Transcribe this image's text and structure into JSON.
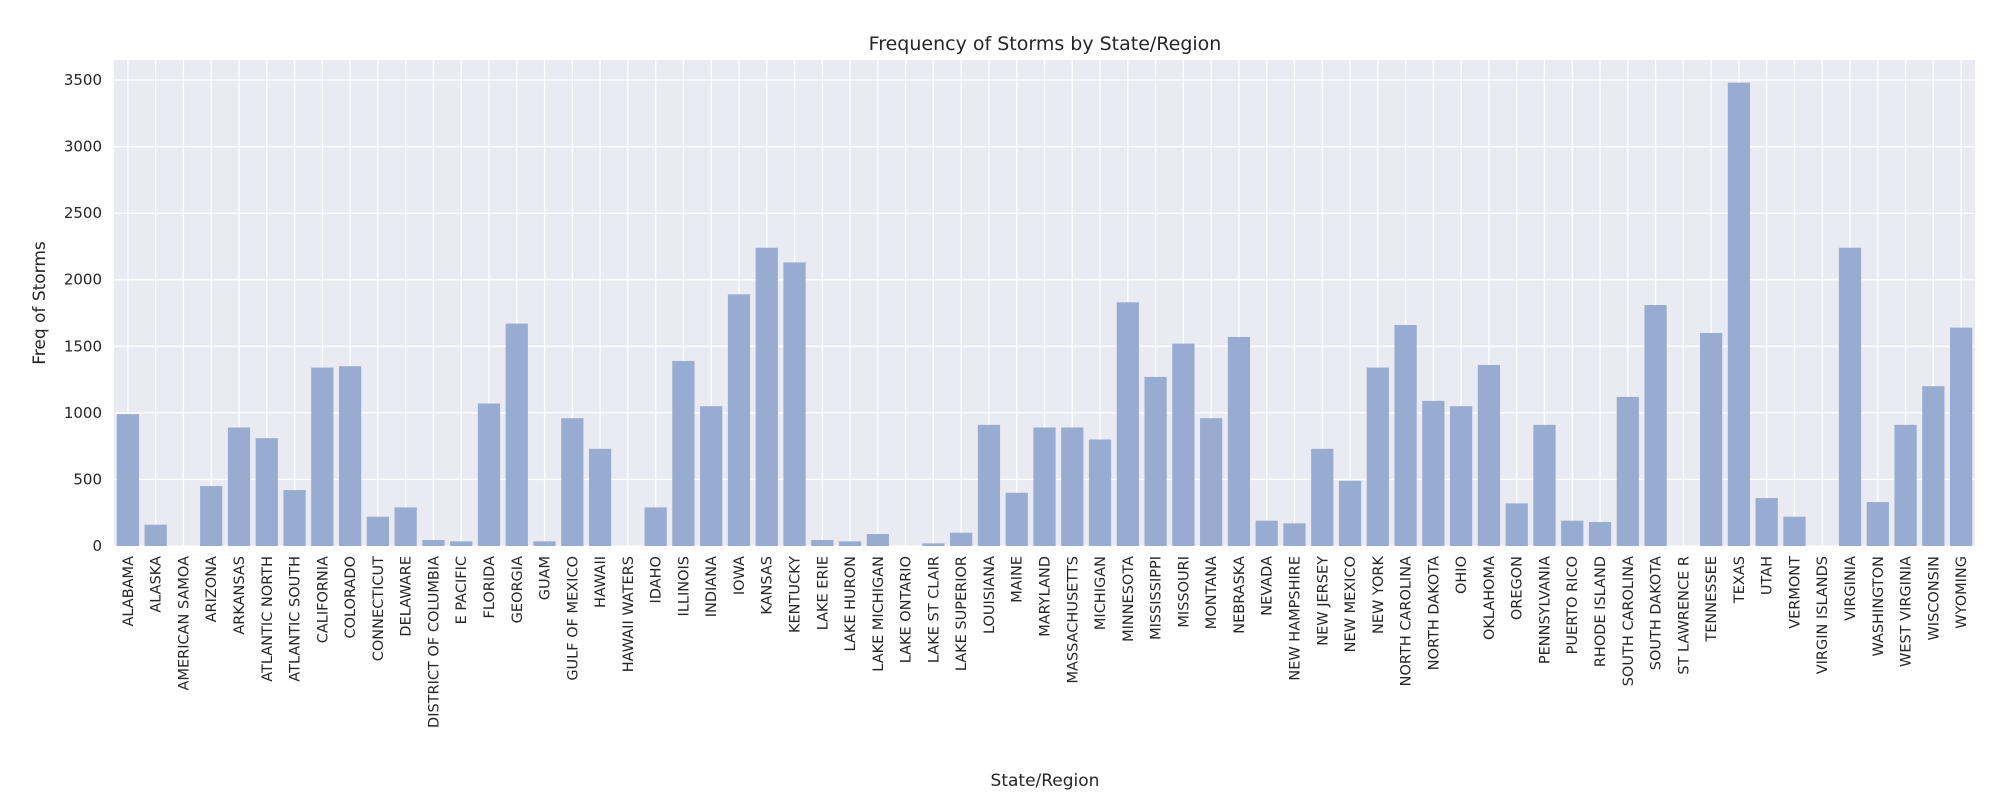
{
  "chart_data": {
    "type": "bar",
    "title": "Frequency of Storms by State/Region",
    "xlabel": "State/Region",
    "ylabel": "Freq of Storms",
    "ylim": [
      0,
      3650
    ],
    "yticks": [
      0,
      500,
      1000,
      1500,
      2000,
      2500,
      3000,
      3500
    ],
    "grid": true,
    "bar_color": "#98abd0",
    "background_color": "#eaeaf2",
    "categories": [
      "ALABAMA",
      "ALASKA",
      "AMERICAN SAMOA",
      "ARIZONA",
      "ARKANSAS",
      "ATLANTIC NORTH",
      "ATLANTIC SOUTH",
      "CALIFORNIA",
      "COLORADO",
      "CONNECTICUT",
      "DELAWARE",
      "DISTRICT OF COLUMBIA",
      "E PACIFIC",
      "FLORIDA",
      "GEORGIA",
      "GUAM",
      "GULF OF MEXICO",
      "HAWAII",
      "HAWAII WATERS",
      "IDAHO",
      "ILLINOIS",
      "INDIANA",
      "IOWA",
      "KANSAS",
      "KENTUCKY",
      "LAKE ERIE",
      "LAKE HURON",
      "LAKE MICHIGAN",
      "LAKE ONTARIO",
      "LAKE ST CLAIR",
      "LAKE SUPERIOR",
      "LOUISIANA",
      "MAINE",
      "MARYLAND",
      "MASSACHUSETTS",
      "MICHIGAN",
      "MINNESOTA",
      "MISSISSIPPI",
      "MISSOURI",
      "MONTANA",
      "NEBRASKA",
      "NEVADA",
      "NEW HAMPSHIRE",
      "NEW JERSEY",
      "NEW MEXICO",
      "NEW YORK",
      "NORTH CAROLINA",
      "NORTH DAKOTA",
      "OHIO",
      "OKLAHOMA",
      "OREGON",
      "PENNSYLVANIA",
      "PUERTO RICO",
      "RHODE ISLAND",
      "SOUTH CAROLINA",
      "SOUTH DAKOTA",
      "ST LAWRENCE R",
      "TENNESSEE",
      "TEXAS",
      "UTAH",
      "VERMONT",
      "VIRGIN ISLANDS",
      "VIRGINIA",
      "WASHINGTON",
      "WEST VIRGINIA",
      "WISCONSIN",
      "WYOMING"
    ],
    "values": [
      990,
      160,
      0,
      450,
      890,
      810,
      420,
      1340,
      1350,
      220,
      290,
      45,
      35,
      1070,
      1670,
      35,
      960,
      730,
      0,
      290,
      1390,
      1050,
      1890,
      2240,
      2130,
      45,
      35,
      90,
      0,
      20,
      100,
      910,
      400,
      890,
      890,
      800,
      1830,
      1270,
      1520,
      960,
      1570,
      190,
      170,
      730,
      490,
      1340,
      1660,
      1090,
      1050,
      1360,
      320,
      910,
      190,
      180,
      1120,
      1810,
      0,
      1600,
      3480,
      360,
      220,
      0,
      2240,
      330,
      910,
      1200,
      1640
    ]
  }
}
